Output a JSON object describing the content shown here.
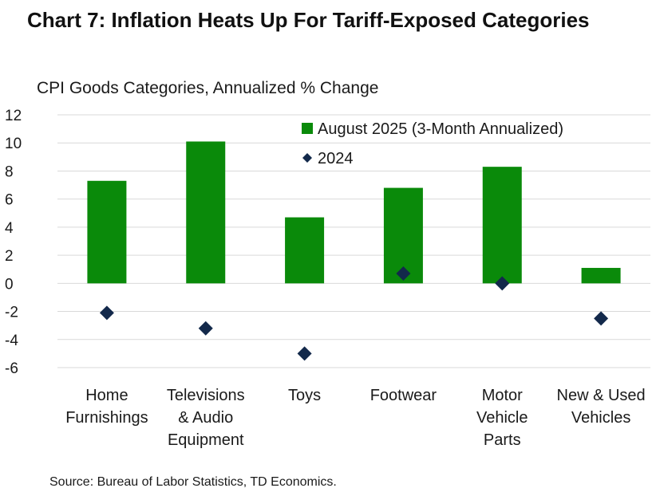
{
  "title": "Chart 7: Inflation Heats Up For Tariff-Exposed Categories",
  "source": "Source: Bureau of Labor Statistics, TD Economics.",
  "colors": {
    "bar": "#0a8a0a",
    "marker": "#13294b",
    "grid": "#d9d9d9"
  },
  "chart_data": {
    "type": "bar",
    "title": "Chart 7: Inflation Heats Up For Tariff-Exposed Categories",
    "ylabel": "CPI Goods Categories, Annualized % Change",
    "xlabel": "",
    "ylim": [
      -6,
      12
    ],
    "yticks": [
      12,
      10,
      8,
      6,
      4,
      2,
      0,
      -2,
      -4,
      -6
    ],
    "grid": true,
    "legend_position": "top-right",
    "categories": [
      [
        "Home",
        "Furnishings"
      ],
      [
        "Televisions",
        "& Audio",
        "Equipment"
      ],
      [
        "Toys"
      ],
      [
        "Footwear"
      ],
      [
        "Motor",
        "Vehicle",
        "Parts"
      ],
      [
        "New & Used",
        "Vehicles"
      ]
    ],
    "series": [
      {
        "name": "August 2025 (3-Month Annualized)",
        "kind": "bar",
        "values": [
          7.3,
          10.1,
          4.7,
          6.8,
          8.3,
          1.1
        ]
      },
      {
        "name": "2024",
        "kind": "marker",
        "values": [
          -2.1,
          -3.2,
          -5.0,
          0.7,
          0.0,
          -2.5
        ]
      }
    ]
  }
}
